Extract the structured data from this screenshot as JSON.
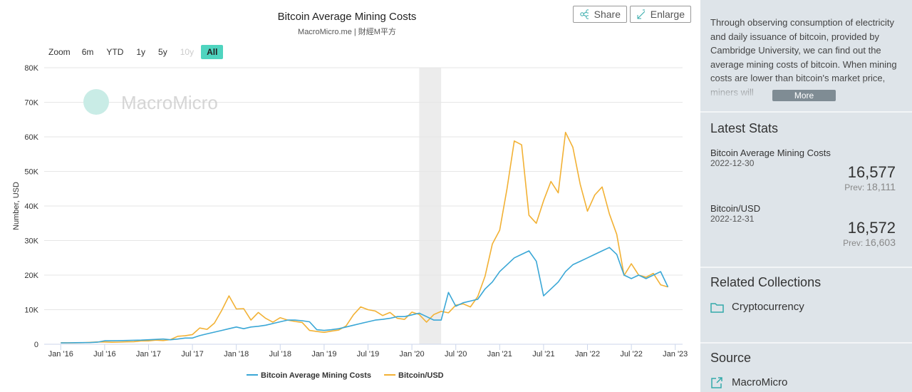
{
  "chart_data": {
    "type": "line",
    "title": "Bitcoin Average Mining Costs",
    "subtitle": "MacroMicro.me | 財經M平方",
    "y_label": "Number, USD",
    "watermark": "MacroMicro",
    "x": [
      "2016-01",
      "2016-02",
      "2016-03",
      "2016-04",
      "2016-05",
      "2016-06",
      "2016-07",
      "2016-08",
      "2016-09",
      "2016-10",
      "2016-11",
      "2016-12",
      "2017-01",
      "2017-02",
      "2017-03",
      "2017-04",
      "2017-05",
      "2017-06",
      "2017-07",
      "2017-08",
      "2017-09",
      "2017-10",
      "2017-11",
      "2017-12",
      "2018-01",
      "2018-02",
      "2018-03",
      "2018-04",
      "2018-05",
      "2018-06",
      "2018-07",
      "2018-08",
      "2018-09",
      "2018-10",
      "2018-11",
      "2018-12",
      "2019-01",
      "2019-02",
      "2019-03",
      "2019-04",
      "2019-05",
      "2019-06",
      "2019-07",
      "2019-08",
      "2019-09",
      "2019-10",
      "2019-11",
      "2019-12",
      "2020-01",
      "2020-02",
      "2020-03",
      "2020-04",
      "2020-05",
      "2020-06",
      "2020-07",
      "2020-08",
      "2020-09",
      "2020-10",
      "2020-11",
      "2020-12",
      "2021-01",
      "2021-02",
      "2021-03",
      "2021-04",
      "2021-05",
      "2021-06",
      "2021-07",
      "2021-08",
      "2021-09",
      "2021-10",
      "2021-11",
      "2021-12",
      "2022-01",
      "2022-02",
      "2022-03",
      "2022-04",
      "2022-05",
      "2022-06",
      "2022-07",
      "2022-08",
      "2022-09",
      "2022-10",
      "2022-11",
      "2022-12"
    ],
    "series": [
      {
        "name": "Bitcoin Average Mining Costs",
        "color": "#3aa7d6",
        "values": [
          400,
          420,
          450,
          480,
          500,
          600,
          1000,
          1000,
          1050,
          1100,
          1150,
          1200,
          1300,
          1400,
          1500,
          1300,
          1500,
          1800,
          1800,
          2500,
          3000,
          3500,
          4000,
          4500,
          5000,
          4500,
          5000,
          5200,
          5500,
          6000,
          6500,
          7000,
          7000,
          6800,
          6500,
          4200,
          4000,
          4200,
          4500,
          5000,
          5500,
          6000,
          6500,
          7000,
          7200,
          7500,
          8000,
          8000,
          8500,
          9000,
          8000,
          7000,
          7000,
          15000,
          11000,
          12000,
          12500,
          13000,
          16000,
          18000,
          21000,
          23000,
          25000,
          26000,
          27000,
          24000,
          14000,
          16000,
          18000,
          21000,
          23000,
          24000,
          25000,
          26000,
          27000,
          28000,
          26000,
          20000,
          19000,
          20000,
          19000,
          20000,
          21000,
          16577
        ]
      },
      {
        "name": "Bitcoin/USD",
        "color": "#f2b134",
        "values": [
          430,
          400,
          415,
          450,
          530,
          670,
          650,
          575,
          610,
          700,
          740,
          960,
          970,
          1190,
          1080,
          1350,
          2300,
          2450,
          2800,
          4700,
          4300,
          6100,
          9800,
          14000,
          10200,
          10300,
          7000,
          9200,
          7500,
          6400,
          7700,
          7000,
          6600,
          6300,
          4000,
          3700,
          3450,
          3800,
          4100,
          5300,
          8500,
          10800,
          10000,
          9600,
          8300,
          9200,
          7500,
          7200,
          9300,
          8600,
          6400,
          8600,
          9500,
          9100,
          11300,
          11700,
          10800,
          13800,
          19700,
          29000,
          33000,
          45000,
          58800,
          57700,
          37300,
          35000,
          41500,
          47100,
          43800,
          61300,
          57000,
          46300,
          38500,
          43200,
          45500,
          37700,
          31800,
          19900,
          23300,
          20000,
          19400,
          20500,
          17200,
          16572
        ]
      }
    ],
    "bands": [
      {
        "from": "2020-02",
        "to": "2020-05",
        "color": "#ececec"
      }
    ],
    "xlim": [
      "2015-12",
      "2023-02"
    ],
    "xticks": [
      {
        "value": "2016-01",
        "label": "Jan '16"
      },
      {
        "value": "2016-07",
        "label": "Jul '16"
      },
      {
        "value": "2017-01",
        "label": "Jan '17"
      },
      {
        "value": "2017-07",
        "label": "Jul '17"
      },
      {
        "value": "2018-01",
        "label": "Jan '18"
      },
      {
        "value": "2018-07",
        "label": "Jul '18"
      },
      {
        "value": "2019-01",
        "label": "Jan '19"
      },
      {
        "value": "2019-07",
        "label": "Jul '19"
      },
      {
        "value": "2020-01",
        "label": "Jan '20"
      },
      {
        "value": "2020-07",
        "label": "Jul '20"
      },
      {
        "value": "2021-01",
        "label": "Jan '21"
      },
      {
        "value": "2021-07",
        "label": "Jul '21"
      },
      {
        "value": "2022-01",
        "label": "Jan '22"
      },
      {
        "value": "2022-07",
        "label": "Jul '22"
      },
      {
        "value": "2023-01",
        "label": "Jan '23"
      }
    ],
    "ylim": [
      0,
      80000
    ],
    "yticks": [
      0,
      {
        "value": 10000,
        "label": "10K"
      },
      {
        "value": 20000,
        "label": "20K"
      },
      {
        "value": 30000,
        "label": "30K"
      },
      {
        "value": 40000,
        "label": "40K"
      },
      {
        "value": 50000,
        "label": "50K"
      },
      {
        "value": 60000,
        "label": "60K"
      },
      {
        "value": 70000,
        "label": "70K"
      },
      {
        "value": 80000,
        "label": "80K"
      }
    ],
    "grid": true
  },
  "toolbar": {
    "zoom_label": "Zoom",
    "zoom_buttons": [
      "6m",
      "YTD",
      "1y",
      "5y",
      "10y",
      "All"
    ],
    "share": "Share",
    "enlarge": "Enlarge"
  },
  "sidebar": {
    "description": "Through observing consumption of electricity and daily issuance of bitcoin, provided by Cambridge University, we can find out the average mining costs of bitcoin. When mining costs are lower than bitcoin's market price, miners will",
    "more": "More",
    "latest_title": "Latest Stats",
    "stats": [
      {
        "name": "Bitcoin Average Mining Costs",
        "date": "2022-12-30",
        "value": "16,577",
        "prev_label": "Prev:",
        "prev": "18,111"
      },
      {
        "name": "Bitcoin/USD",
        "date": "2022-12-31",
        "value": "16,572",
        "prev_label": "Prev:",
        "prev": "16,603"
      }
    ],
    "related_title": "Related Collections",
    "related": "Cryptocurrency",
    "source_title": "Source",
    "source": "MacroMicro"
  }
}
